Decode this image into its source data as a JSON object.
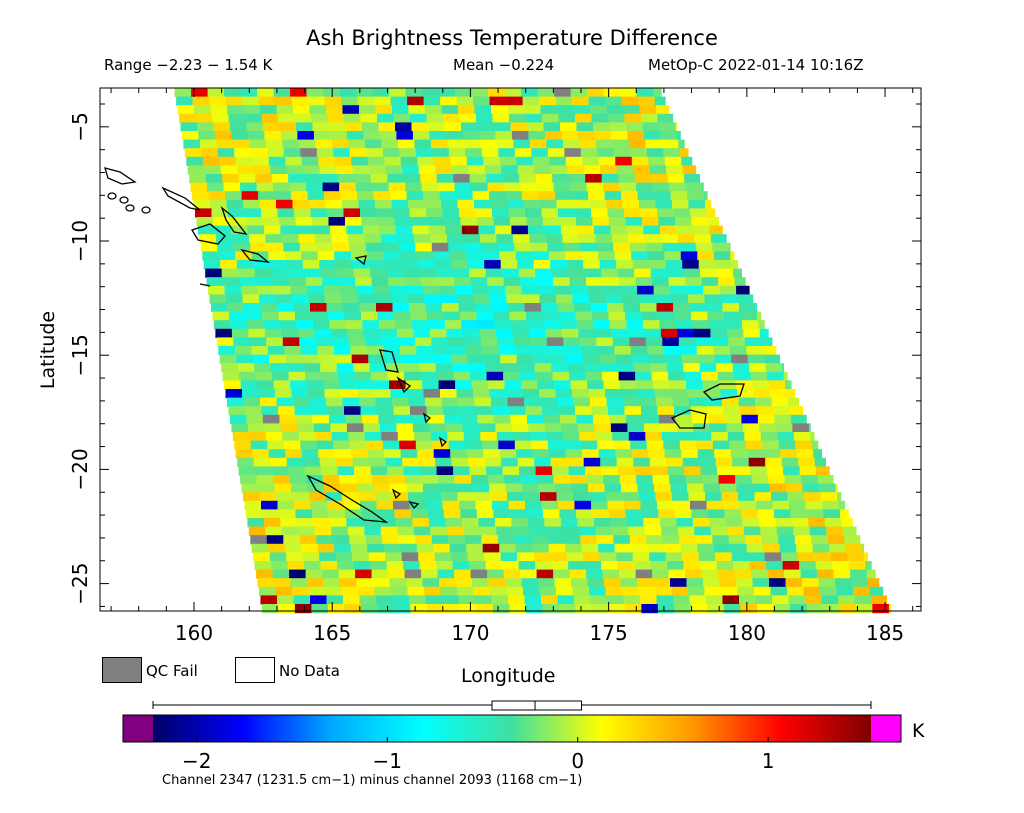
{
  "header": {
    "title": "Ash Brightness Temperature Difference",
    "range_text": "Range −2.23 − 1.54 K",
    "mean_text": "Mean −0.224",
    "satellite_text": "MetOp-C 2022-01-14 10:16Z"
  },
  "legend": {
    "qc_fail_label": "QC Fail",
    "no_data_label": "No Data",
    "qc_fail_color": "#808080",
    "no_data_color": "#ffffff"
  },
  "chart_data": {
    "type": "heatmap",
    "title": "Ash Brightness Temperature Difference",
    "xlabel": "Longitude",
    "ylabel": "Latitude",
    "xlim": [
      156.6,
      186.3
    ],
    "ylim": [
      -26.2,
      -3.3
    ],
    "x_ticks": [
      160,
      165,
      170,
      175,
      180,
      185
    ],
    "y_ticks": [
      -5,
      -10,
      -15,
      -20,
      -25
    ],
    "x_tick_labels": [
      "160",
      "165",
      "170",
      "175",
      "180",
      "185"
    ],
    "y_tick_labels": [
      "−5",
      "−10",
      "−15",
      "−20",
      "−25"
    ],
    "swath_corners": [
      [
        159.3,
        -3.3
      ],
      [
        176.9,
        -3.3
      ],
      [
        185.3,
        -26.2
      ],
      [
        162.5,
        -26.2
      ]
    ],
    "stats": {
      "min": -2.23,
      "max": 1.54,
      "mean": -0.224
    },
    "colorbar": {
      "min": -2.23,
      "max": 1.54,
      "unit": "K",
      "ticks": [
        -2,
        -1,
        0,
        1
      ],
      "tick_labels": [
        "−2",
        "−1",
        "0",
        "1"
      ],
      "under_color": "#800080",
      "over_color": "#ff00ff",
      "stops": [
        "#000066",
        "#0000ff",
        "#00aaff",
        "#00ffff",
        "#40e0a0",
        "#ffff00",
        "#ff9900",
        "#ff0000",
        "#800000"
      ],
      "boxplot": {
        "whisker_low": -2.23,
        "q1": -0.45,
        "median": -0.224,
        "q3": 0.02,
        "whisker_high": 1.54
      },
      "caption": "Channel 2347 (1231.5 cm−1) minus channel 2093 (1168 cm−1)"
    }
  }
}
